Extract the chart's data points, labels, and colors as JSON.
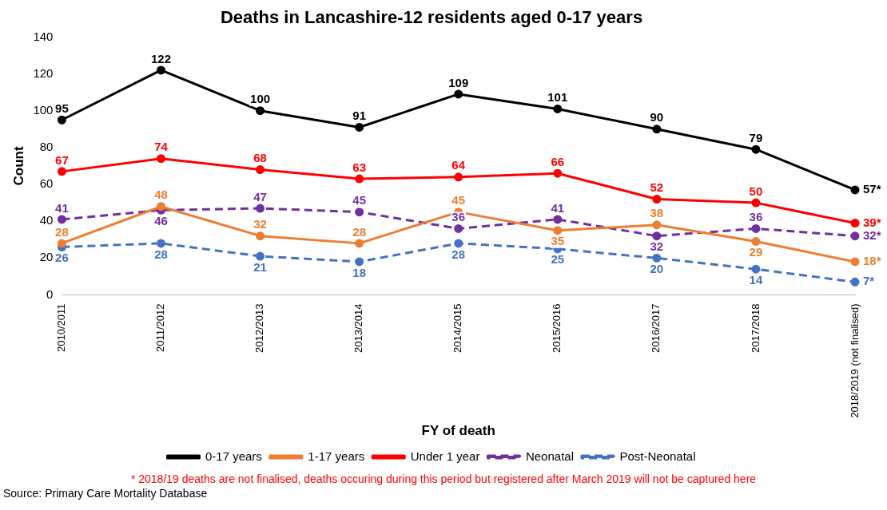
{
  "chart_data": {
    "type": "line",
    "title": "Deaths in Lancashire-12 residents aged 0-17 years",
    "xlabel": "FY of death",
    "ylabel": "Count",
    "categories": [
      "2010/2011",
      "2011/2012",
      "2012/2013",
      "2013/2014",
      "2014/2015",
      "2015/2016",
      "2016/2017",
      "2017/2018",
      "2018/2019 (not finalised)"
    ],
    "series": [
      {
        "name": "0-17 years",
        "color": "#000000",
        "line_style": "solid",
        "values": [
          95,
          122,
          100,
          91,
          109,
          101,
          90,
          79,
          57
        ],
        "value_labels": [
          "95",
          "122",
          "100",
          "91",
          "109",
          "101",
          "90",
          "79",
          "57*"
        ]
      },
      {
        "name": "1-17 years",
        "color": "#ed7d31",
        "line_style": "solid",
        "values": [
          28,
          48,
          32,
          28,
          45,
          35,
          38,
          29,
          18
        ],
        "value_labels": [
          "28",
          "48",
          "32",
          "28",
          "45",
          "35",
          "38",
          "29",
          "18*"
        ]
      },
      {
        "name": "Under 1 year",
        "color": "#ff0000",
        "line_style": "solid",
        "values": [
          67,
          74,
          68,
          63,
          64,
          66,
          52,
          50,
          39
        ],
        "value_labels": [
          "67",
          "74",
          "68",
          "63",
          "64",
          "66",
          "52",
          "50",
          "39*"
        ]
      },
      {
        "name": "Neonatal",
        "color": "#7030a0",
        "line_style": "dashed",
        "values": [
          41,
          46,
          47,
          45,
          36,
          41,
          32,
          36,
          32
        ],
        "value_labels": [
          "41",
          "46",
          "47",
          "45",
          "36",
          "41",
          "32",
          "36",
          "32*"
        ]
      },
      {
        "name": "Post-Neonatal",
        "color": "#4472c4",
        "line_style": "dashed",
        "values": [
          26,
          28,
          21,
          18,
          28,
          25,
          20,
          14,
          7
        ],
        "value_labels": [
          "26",
          "28",
          "21",
          "18",
          "28",
          "25",
          "20",
          "14",
          "7*"
        ]
      }
    ],
    "ylim": [
      0,
      140
    ],
    "yticks": [
      0,
      20,
      40,
      60,
      80,
      100,
      120,
      140
    ],
    "marker": "circle",
    "legend": "bottom",
    "annotations": [
      "* 2018/19 deaths are not finalised, deaths occuring during this period but registered after March 2019 will not be captured here",
      "Source: Primary Care Mortality Database"
    ]
  }
}
